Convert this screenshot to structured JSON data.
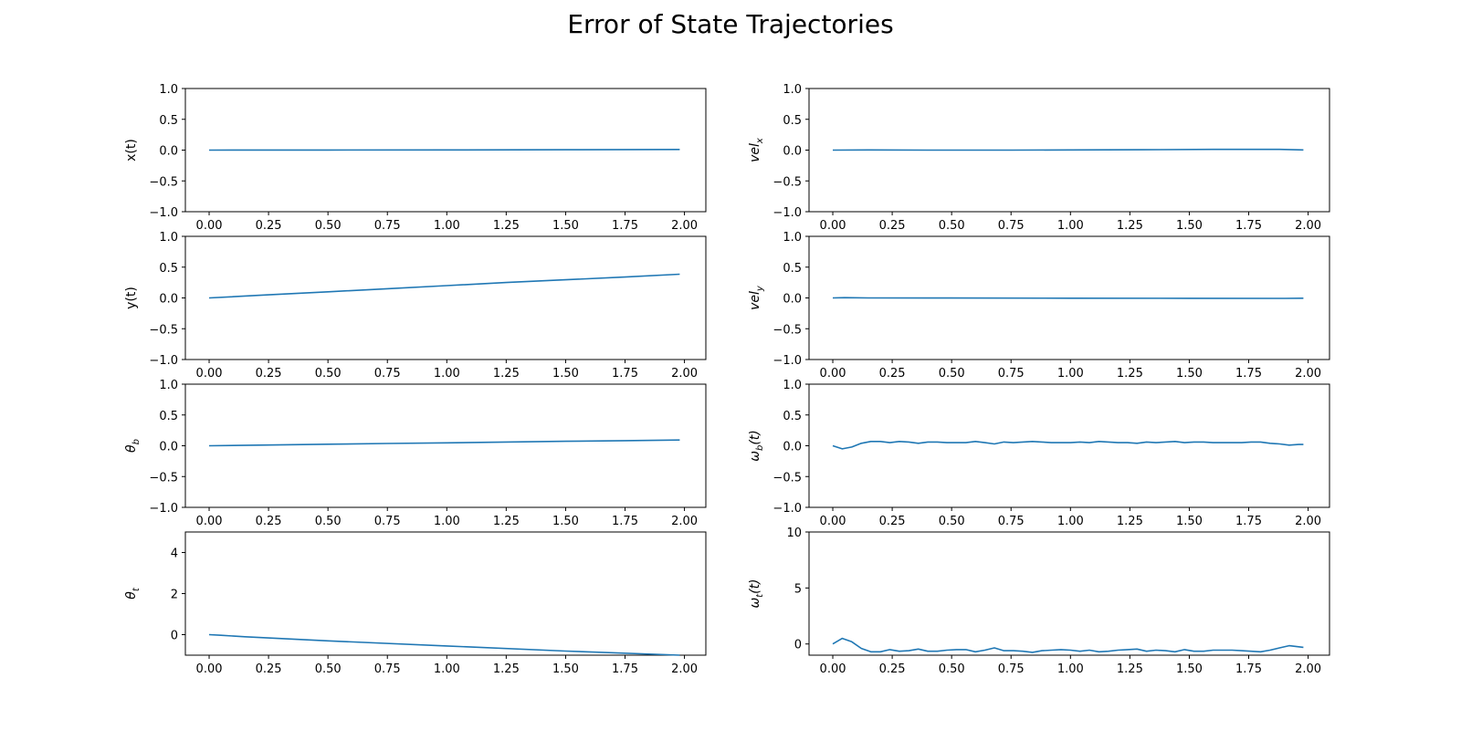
{
  "figure": {
    "title": "Error of State Trajectories"
  },
  "chart_data": [
    {
      "type": "line",
      "ylabel": "x(t)",
      "ylabel_main": "x(t)",
      "ylabel_sub": "",
      "xlim": [
        -0.1,
        2.09
      ],
      "ylim": [
        -1,
        1
      ],
      "xticks": [
        "0.00",
        "0.25",
        "0.50",
        "0.75",
        "1.00",
        "1.25",
        "1.50",
        "1.75",
        "2.00"
      ],
      "yticks": [
        "−1.0",
        "−0.5",
        "0.0",
        "0.5",
        "1.0"
      ],
      "ytick_values": [
        -1,
        -0.5,
        0,
        0.5,
        1
      ],
      "series": [
        {
          "x": [
            0,
            0.5,
            1.0,
            1.5,
            1.98
          ],
          "y": [
            0,
            0.001,
            0.003,
            0.006,
            0.01
          ]
        }
      ]
    },
    {
      "type": "line",
      "ylabel": "vel_x",
      "ylabel_main": "vel",
      "ylabel_sub": "x",
      "xlim": [
        -0.1,
        2.09
      ],
      "ylim": [
        -1,
        1
      ],
      "xticks": [
        "0.00",
        "0.25",
        "0.50",
        "0.75",
        "1.00",
        "1.25",
        "1.50",
        "1.75",
        "2.00"
      ],
      "yticks": [
        "−1.0",
        "−0.5",
        "0.0",
        "0.5",
        "1.0"
      ],
      "ytick_values": [
        -1,
        -0.5,
        0,
        0.5,
        1
      ],
      "series": [
        {
          "x": [
            0,
            0.15,
            0.4,
            0.75,
            1.0,
            1.3,
            1.6,
            1.88,
            1.98
          ],
          "y": [
            0,
            0.003,
            0.0,
            0.0,
            0.003,
            0.006,
            0.012,
            0.012,
            0.003
          ]
        }
      ]
    },
    {
      "type": "line",
      "ylabel": "y(t)",
      "ylabel_main": "y(t)",
      "ylabel_sub": "",
      "xlim": [
        -0.1,
        2.09
      ],
      "ylim": [
        -1,
        1
      ],
      "xticks": [
        "0.00",
        "0.25",
        "0.50",
        "0.75",
        "1.00",
        "1.25",
        "1.50",
        "1.75",
        "2.00"
      ],
      "yticks": [
        "−1.0",
        "−0.5",
        "0.0",
        "0.5",
        "1.0"
      ],
      "ytick_values": [
        -1,
        -0.5,
        0,
        0.5,
        1
      ],
      "series": [
        {
          "x": [
            0,
            0.25,
            0.5,
            0.75,
            1.0,
            1.25,
            1.5,
            1.75,
            1.98
          ],
          "y": [
            0,
            0.05,
            0.1,
            0.15,
            0.2,
            0.25,
            0.295,
            0.34,
            0.385
          ]
        }
      ]
    },
    {
      "type": "line",
      "ylabel": "vel_y",
      "ylabel_main": "vel",
      "ylabel_sub": "y",
      "xlim": [
        -0.1,
        2.09
      ],
      "ylim": [
        -1,
        1
      ],
      "xticks": [
        "0.00",
        "0.25",
        "0.50",
        "0.75",
        "1.00",
        "1.25",
        "1.50",
        "1.75",
        "2.00"
      ],
      "yticks": [
        "−1.0",
        "−0.5",
        "0.0",
        "0.5",
        "1.0"
      ],
      "ytick_values": [
        -1,
        -0.5,
        0,
        0.5,
        1
      ],
      "series": [
        {
          "x": [
            0,
            0.05,
            0.15,
            0.5,
            1.0,
            1.5,
            1.9,
            1.98
          ],
          "y": [
            0,
            0.005,
            0.0,
            -0.002,
            -0.004,
            -0.006,
            -0.008,
            -0.005
          ]
        }
      ]
    },
    {
      "type": "line",
      "ylabel": "θ_b",
      "ylabel_main": "θ",
      "ylabel_sub": "b",
      "xlim": [
        -0.1,
        2.09
      ],
      "ylim": [
        -1,
        1
      ],
      "xticks": [
        "0.00",
        "0.25",
        "0.50",
        "0.75",
        "1.00",
        "1.25",
        "1.50",
        "1.75",
        "2.00"
      ],
      "yticks": [
        "−1.0",
        "−0.5",
        "0.0",
        "0.5",
        "1.0"
      ],
      "ytick_values": [
        -1,
        -0.5,
        0,
        0.5,
        1
      ],
      "series": [
        {
          "x": [
            0,
            0.25,
            0.5,
            0.75,
            1.0,
            1.25,
            1.5,
            1.75,
            1.98
          ],
          "y": [
            0,
            0.012,
            0.025,
            0.037,
            0.048,
            0.06,
            0.072,
            0.083,
            0.093
          ]
        }
      ]
    },
    {
      "type": "line",
      "ylabel": "ω_b(t)",
      "ylabel_main": "ω",
      "ylabel_sub": "b",
      "ylabel_suffix": "(t)",
      "xlim": [
        -0.1,
        2.09
      ],
      "ylim": [
        -1,
        1
      ],
      "xticks": [
        "0.00",
        "0.25",
        "0.50",
        "0.75",
        "1.00",
        "1.25",
        "1.50",
        "1.75",
        "2.00"
      ],
      "yticks": [
        "−1.0",
        "−0.5",
        "0.0",
        "0.5",
        "1.0"
      ],
      "ytick_values": [
        -1,
        -0.5,
        0,
        0.5,
        1
      ],
      "series": [
        {
          "x": [
            0,
            0.04,
            0.08,
            0.12,
            0.16,
            0.2,
            0.24,
            0.28,
            0.32,
            0.36,
            0.4,
            0.44,
            0.48,
            0.52,
            0.56,
            0.6,
            0.64,
            0.68,
            0.72,
            0.76,
            0.8,
            0.84,
            0.88,
            0.92,
            0.96,
            1.0,
            1.04,
            1.08,
            1.12,
            1.16,
            1.2,
            1.24,
            1.28,
            1.32,
            1.36,
            1.4,
            1.44,
            1.48,
            1.52,
            1.56,
            1.6,
            1.64,
            1.68,
            1.72,
            1.76,
            1.8,
            1.84,
            1.88,
            1.92,
            1.96,
            1.98
          ],
          "y": [
            0,
            -0.05,
            -0.02,
            0.04,
            0.07,
            0.07,
            0.05,
            0.07,
            0.06,
            0.04,
            0.06,
            0.06,
            0.05,
            0.05,
            0.05,
            0.07,
            0.05,
            0.03,
            0.06,
            0.05,
            0.06,
            0.07,
            0.06,
            0.05,
            0.05,
            0.05,
            0.06,
            0.05,
            0.07,
            0.06,
            0.05,
            0.05,
            0.04,
            0.06,
            0.05,
            0.06,
            0.07,
            0.05,
            0.06,
            0.06,
            0.05,
            0.05,
            0.05,
            0.05,
            0.06,
            0.06,
            0.04,
            0.03,
            0.01,
            0.02,
            0.02
          ]
        }
      ]
    },
    {
      "type": "line",
      "ylabel": "θ_t",
      "ylabel_main": "θ",
      "ylabel_sub": "t",
      "xlim": [
        -0.1,
        2.09
      ],
      "ylim": [
        -1,
        5
      ],
      "xticks": [
        "0.00",
        "0.25",
        "0.50",
        "0.75",
        "1.00",
        "1.25",
        "1.50",
        "1.75",
        "2.00"
      ],
      "yticks": [
        "0",
        "2",
        "4"
      ],
      "ytick_values": [
        0,
        2,
        4
      ],
      "series": [
        {
          "x": [
            0,
            0.05,
            0.15,
            0.5,
            1.0,
            1.5,
            1.98
          ],
          "y": [
            0,
            -0.03,
            -0.1,
            -0.3,
            -0.55,
            -0.8,
            -1.0
          ]
        }
      ]
    },
    {
      "type": "line",
      "ylabel": "ω_t(t)",
      "ylabel_main": "ω",
      "ylabel_sub": "t",
      "ylabel_suffix": "(t)",
      "xlim": [
        -0.1,
        2.09
      ],
      "ylim": [
        -1,
        10
      ],
      "xticks": [
        "0.00",
        "0.25",
        "0.50",
        "0.75",
        "1.00",
        "1.25",
        "1.50",
        "1.75",
        "2.00"
      ],
      "yticks": [
        "0",
        "5",
        "10"
      ],
      "ytick_values": [
        0,
        5,
        10
      ],
      "series": [
        {
          "x": [
            0,
            0.04,
            0.08,
            0.12,
            0.16,
            0.2,
            0.24,
            0.28,
            0.32,
            0.36,
            0.4,
            0.44,
            0.48,
            0.52,
            0.56,
            0.6,
            0.64,
            0.68,
            0.72,
            0.76,
            0.8,
            0.84,
            0.88,
            0.92,
            0.96,
            1.0,
            1.04,
            1.08,
            1.12,
            1.16,
            1.2,
            1.24,
            1.28,
            1.32,
            1.36,
            1.4,
            1.44,
            1.48,
            1.52,
            1.56,
            1.6,
            1.64,
            1.68,
            1.72,
            1.76,
            1.8,
            1.84,
            1.88,
            1.92,
            1.96,
            1.98
          ],
          "y": [
            0,
            0.5,
            0.2,
            -0.4,
            -0.7,
            -0.7,
            -0.5,
            -0.65,
            -0.6,
            -0.45,
            -0.65,
            -0.65,
            -0.55,
            -0.5,
            -0.5,
            -0.7,
            -0.55,
            -0.35,
            -0.6,
            -0.6,
            -0.65,
            -0.75,
            -0.6,
            -0.55,
            -0.5,
            -0.55,
            -0.65,
            -0.55,
            -0.7,
            -0.65,
            -0.55,
            -0.5,
            -0.45,
            -0.65,
            -0.55,
            -0.6,
            -0.7,
            -0.5,
            -0.65,
            -0.65,
            -0.55,
            -0.55,
            -0.55,
            -0.6,
            -0.65,
            -0.7,
            -0.55,
            -0.35,
            -0.15,
            -0.25,
            -0.3
          ]
        }
      ]
    }
  ]
}
